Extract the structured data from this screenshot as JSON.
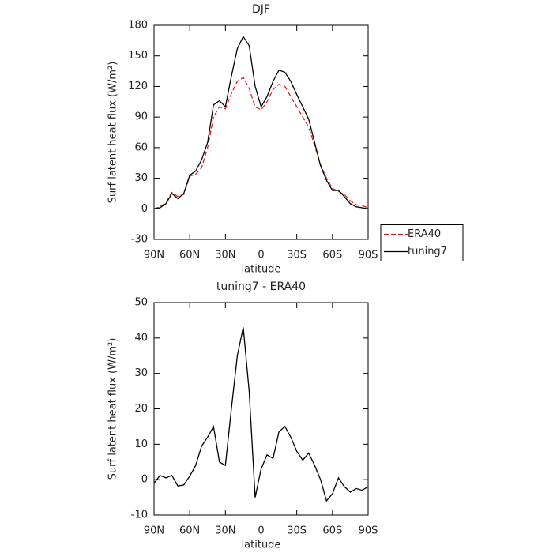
{
  "chart_data": [
    {
      "type": "line",
      "title": "DJF",
      "x_label": "latitude",
      "y_label": "Surf latent heat flux (W/m²)",
      "x": [
        90,
        85,
        80,
        75,
        70,
        65,
        60,
        55,
        50,
        45,
        40,
        35,
        30,
        25,
        20,
        15,
        10,
        5,
        0,
        -5,
        -10,
        -15,
        -20,
        -25,
        -30,
        -35,
        -40,
        -45,
        -50,
        -55,
        -60,
        -65,
        -70,
        -75,
        -80,
        -85,
        -90
      ],
      "series": [
        {
          "name": "ERA40",
          "color": "#e02020",
          "line_style": "dashed",
          "values": [
            0,
            2,
            6,
            16,
            12,
            14,
            32,
            34,
            40,
            60,
            90,
            100,
            98,
            113,
            125,
            129,
            118,
            100,
            97,
            105,
            117,
            122,
            120,
            110,
            100,
            90,
            80,
            62,
            43,
            30,
            20,
            17,
            14,
            8,
            4,
            3,
            1
          ]
        },
        {
          "name": "tuning7",
          "color": "#000000",
          "line_style": "solid",
          "values": [
            0,
            1,
            5,
            15,
            10,
            15,
            33,
            37,
            48,
            65,
            102,
            106,
            100,
            130,
            157,
            169,
            160,
            120,
            100,
            110,
            125,
            136,
            134,
            125,
            112,
            100,
            88,
            65,
            42,
            28,
            18,
            18,
            12,
            5,
            2,
            1,
            0
          ]
        }
      ],
      "xlim": [
        90,
        -90
      ],
      "xticks": [
        {
          "value": 90,
          "label": "90N"
        },
        {
          "value": 60,
          "label": "60N"
        },
        {
          "value": 30,
          "label": "30N"
        },
        0,
        {
          "value": -30,
          "label": "30S"
        },
        {
          "value": -60,
          "label": "60S"
        },
        {
          "value": -90,
          "label": "90S"
        }
      ],
      "ylim": [
        -30,
        180
      ],
      "yticks": [
        -30,
        0,
        30,
        60,
        90,
        120,
        150,
        180
      ],
      "grid": false,
      "legend": "right"
    },
    {
      "type": "line",
      "title": "tuning7 - ERA40",
      "x_label": "latitude",
      "y_label": "Surf latent heat flux (W/m²)",
      "x": [
        90,
        85,
        80,
        75,
        70,
        65,
        60,
        55,
        50,
        45,
        40,
        35,
        30,
        25,
        20,
        15,
        10,
        5,
        0,
        -5,
        -10,
        -15,
        -20,
        -25,
        -30,
        -35,
        -40,
        -45,
        -50,
        -55,
        -60,
        -65,
        -70,
        -75,
        -80,
        -85,
        -90
      ],
      "series": [
        {
          "color": "#000000",
          "line_style": "solid",
          "values": [
            -1,
            1.2,
            0.5,
            1.2,
            -1.8,
            -1.5,
            1,
            4,
            9.5,
            12,
            15,
            5,
            4,
            20,
            35,
            43,
            25,
            -5,
            3,
            7,
            6,
            13.5,
            15,
            12,
            8,
            5.5,
            7.5,
            4,
            0,
            -6,
            -4,
            0.5,
            -2,
            -3.5,
            -2.5,
            -3,
            -2
          ]
        }
      ],
      "xlim": [
        90,
        -90
      ],
      "xticks": [
        {
          "value": 90,
          "label": "90N"
        },
        {
          "value": 60,
          "label": "60N"
        },
        {
          "value": 30,
          "label": "30N"
        },
        0,
        {
          "value": -30,
          "label": "30S"
        },
        {
          "value": -60,
          "label": "60S"
        },
        {
          "value": -90,
          "label": "90S"
        }
      ],
      "ylim": [
        -10,
        50
      ],
      "yticks": [
        -10,
        0,
        10,
        20,
        30,
        40,
        50
      ],
      "grid": false
    }
  ]
}
